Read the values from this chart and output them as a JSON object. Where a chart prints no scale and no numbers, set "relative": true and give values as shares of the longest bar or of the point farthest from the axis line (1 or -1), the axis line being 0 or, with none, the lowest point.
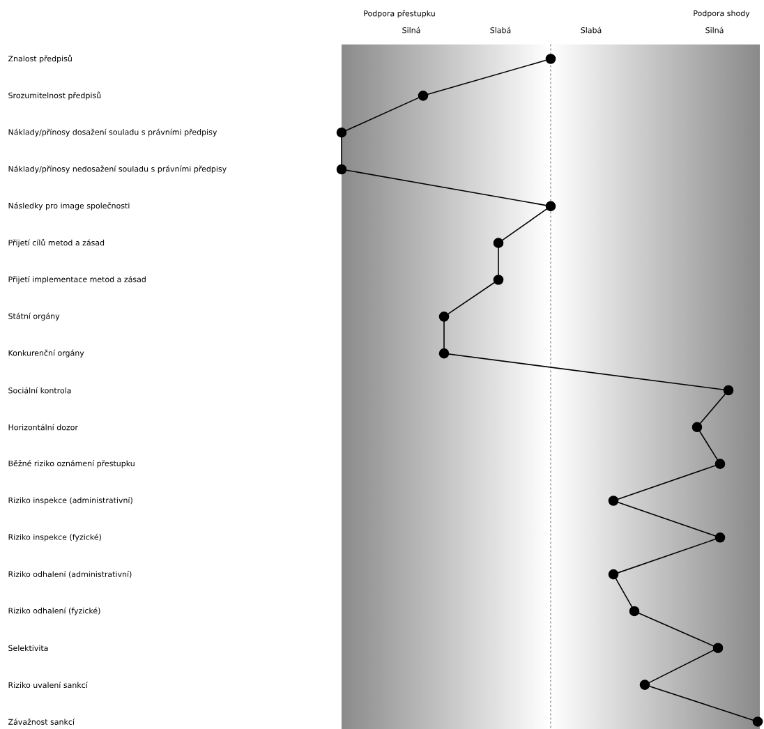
{
  "chart_data": {
    "type": "line",
    "orientation": "horizontal",
    "relative": true,
    "marker": "circle",
    "color": "#000000",
    "categories": [
      "Znalost předpisů",
      "Srozumitelnost předpisů",
      "Náklady/přínosy dosažení souladu s právními předpisy",
      "Náklady/přínosy nedosažení souladu s právními předpisy",
      "Následky pro image společnosti",
      "Přijetí cílů metod a zásad",
      "Přijetí implementace metod a zásad",
      "Státní orgány",
      "Konkurenční orgány",
      "Sociální kontrola",
      "Horizontální dozor",
      "Běžné riziko oznámení přestupku",
      "Riziko inspekce (administrativní)",
      "Riziko inspekce (fyzické)",
      "Riziko odhalení (administrativní)",
      "Riziko odhalení (fyzické)",
      "Selektivita",
      "Riziko uvalení sankcí",
      "Závažnost sankcí"
    ],
    "values": [
      0,
      -0.61,
      -1,
      -1,
      0,
      -0.25,
      -0.25,
      -0.51,
      -0.51,
      0.85,
      0.7,
      0.81,
      0.3,
      0.81,
      0.3,
      0.4,
      0.8,
      0.45,
      0.99
    ],
    "ref_lines": [
      {
        "axis": "x",
        "value": 0,
        "line_style": "dashed",
        "color": "#666666"
      }
    ],
    "bands": [
      {
        "axis": "x",
        "from": -1,
        "to": 0
      },
      {
        "axis": "x",
        "from": 0,
        "to": 1
      }
    ],
    "annotations": [
      "Podpora přestupku",
      "Silná",
      "Slabá",
      "Slabá",
      "Podpora shody",
      "Silná"
    ]
  }
}
